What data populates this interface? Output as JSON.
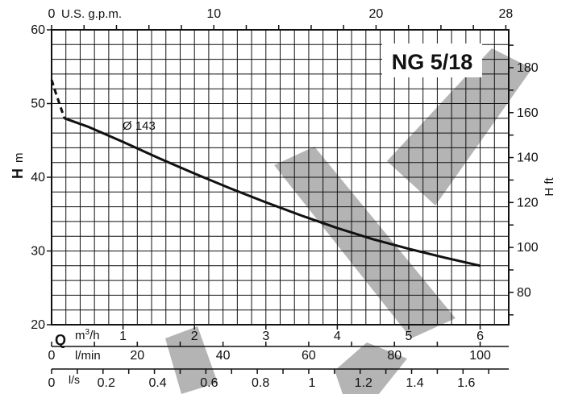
{
  "chart_data": {
    "type": "line",
    "title": "NG 5/18",
    "curve_label": "Ø 143",
    "x_primary": {
      "quantity": "Q",
      "unit": "m³/h",
      "unit_base": "m",
      "unit_sup": "3",
      "unit_tail": "/h",
      "range": [
        0,
        6.4
      ],
      "ticks": [
        1,
        2,
        3,
        4,
        5,
        6
      ]
    },
    "x_top": {
      "label": "U.S. g.p.m.",
      "range": [
        0,
        28
      ],
      "tick_labels": [
        "0",
        "10",
        "20",
        "28"
      ],
      "tick_values": [
        0,
        10,
        20,
        28
      ]
    },
    "x_lmin": {
      "label": "l/min",
      "tick_labels": [
        "0",
        "20",
        "40",
        "60",
        "80",
        "100"
      ],
      "tick_values": [
        0,
        20,
        40,
        60,
        80,
        100
      ]
    },
    "x_ls": {
      "label": "l/s",
      "tick_labels": [
        "0",
        "0.2",
        "0.4",
        "0.6",
        "0.8",
        "1",
        "1.2",
        "1.4",
        "1.6"
      ],
      "tick_values": [
        0,
        0.2,
        0.4,
        0.6,
        0.8,
        1.0,
        1.2,
        1.4,
        1.6
      ]
    },
    "y_left": {
      "label": "H",
      "unit": "m",
      "range": [
        20,
        60
      ],
      "ticks": [
        20,
        30,
        40,
        50,
        60
      ]
    },
    "y_right": {
      "label": "H ft",
      "tick_labels": [
        "80",
        "100",
        "120",
        "140",
        "160",
        "180"
      ],
      "tick_values": [
        80,
        100,
        120,
        140,
        160,
        180
      ]
    },
    "grid": true,
    "series": [
      {
        "x": [
          0.18,
          0.5,
          1.0,
          1.5,
          2.0,
          2.5,
          3.0,
          3.5,
          4.0,
          4.5,
          5.0,
          5.5,
          6.0
        ],
        "y": [
          48.0,
          46.9,
          44.8,
          42.6,
          40.5,
          38.5,
          36.6,
          34.8,
          33.1,
          31.6,
          30.3,
          29.1,
          28.0
        ],
        "style": "solid"
      },
      {
        "x": [
          0.0,
          0.06,
          0.12,
          0.18
        ],
        "y": [
          53.2,
          51.4,
          49.7,
          48.0
        ],
        "style": "dashed"
      }
    ],
    "colors": {
      "line": "#111111",
      "grid": "#111111",
      "watermark": "#b4b4b4"
    }
  }
}
